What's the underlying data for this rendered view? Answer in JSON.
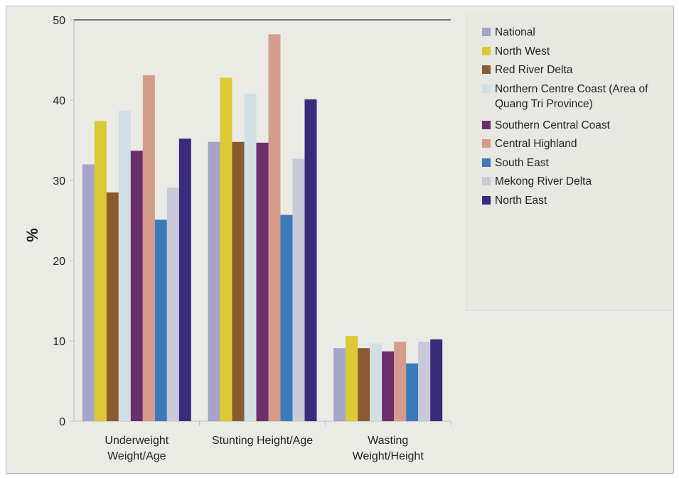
{
  "chart_data": {
    "type": "bar",
    "categories": [
      [
        "Underweight",
        "Weight/Age"
      ],
      [
        "Stunting Height/Age"
      ],
      [
        "Wasting",
        "Weight/Height"
      ]
    ],
    "ylabel": "%",
    "ylim": [
      0,
      50
    ],
    "yticks": [
      0,
      10,
      20,
      30,
      40,
      50
    ],
    "legend_position": "top-right",
    "series": [
      {
        "name": "National",
        "color": "#a5a4c9",
        "values": [
          32.0,
          34.8,
          9.1
        ]
      },
      {
        "name": "North West",
        "color": "#dcc933",
        "values": [
          37.4,
          42.8,
          10.6
        ]
      },
      {
        "name": "Red River Delta",
        "color": "#8a5a30",
        "values": [
          28.5,
          34.8,
          9.1
        ]
      },
      {
        "name": "Northern Centre Coast (Area of Quang Tri Province)",
        "color": "#d2dfe4",
        "values": [
          38.7,
          40.8,
          9.7
        ]
      },
      {
        "name": "Southern Central Coast",
        "color": "#6d2f6b",
        "values": [
          33.7,
          34.7,
          8.7
        ]
      },
      {
        "name": "Central Highland",
        "color": "#d59c8b",
        "values": [
          43.1,
          48.2,
          9.9
        ]
      },
      {
        "name": "South East",
        "color": "#3d7ab9",
        "values": [
          25.1,
          25.7,
          7.2
        ]
      },
      {
        "name": "Mekong River Delta",
        "color": "#c8c9d9",
        "values": [
          29.1,
          32.7,
          9.9
        ]
      },
      {
        "name": "North East",
        "color": "#3a2a7a",
        "values": [
          35.2,
          40.1,
          10.2
        ]
      }
    ]
  }
}
